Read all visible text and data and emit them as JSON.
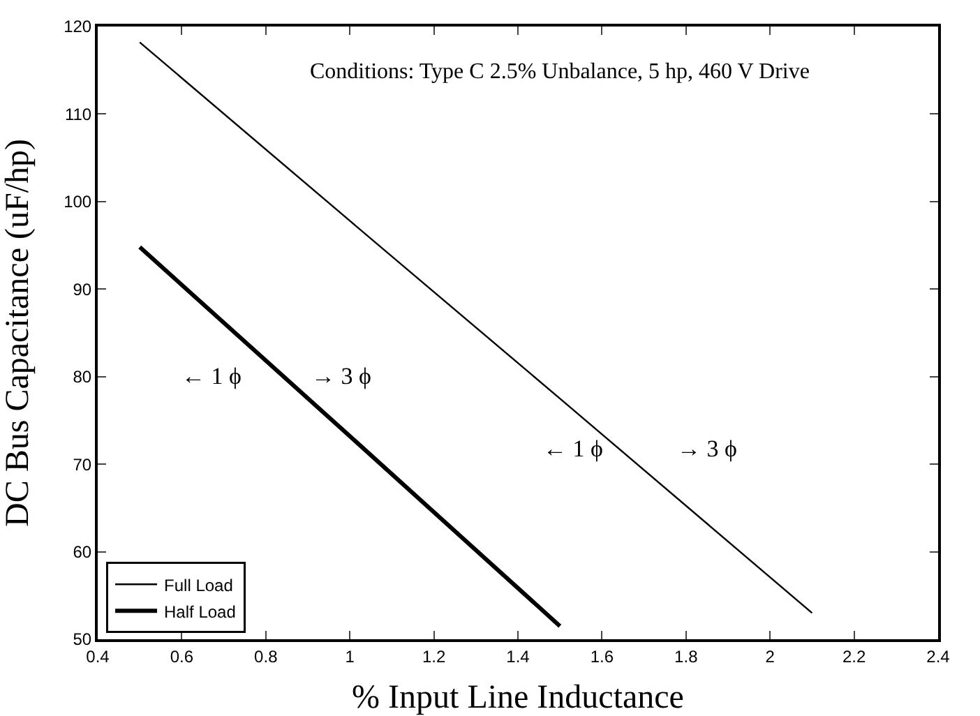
{
  "chart_data": {
    "type": "line",
    "xlabel": "% Input Line Inductance",
    "ylabel": "DC Bus Capacitance (uF/hp)",
    "xlim": [
      0.4,
      2.4
    ],
    "xticks": [
      0.4,
      0.6,
      0.8,
      1,
      1.2,
      1.4,
      1.6,
      1.8,
      2,
      2.2,
      2.4
    ],
    "ylim": [
      50,
      120
    ],
    "yticks": [
      50,
      60,
      70,
      80,
      90,
      100,
      110,
      120
    ],
    "grid": false,
    "legend": "bottom left",
    "marker": "none",
    "line_style": "solid",
    "series": [
      {
        "name": "Full Load",
        "color": "#000000",
        "x": [
          0.5,
          1.0,
          1.5,
          2.1
        ],
        "values": [
          118.2,
          97.8,
          77.5,
          53
        ]
      },
      {
        "name": "Half Load",
        "color": "#000000",
        "x": [
          0.5,
          1.0,
          1.5
        ],
        "values": [
          94.8,
          73.2,
          51.5
        ]
      }
    ],
    "annotations": [
      "Conditions: Type C 2.5% Unbalance, 5 hp, 460 V Drive",
      "← 1 ϕ",
      "→ 3 ϕ",
      "← 1 ϕ",
      "→ 3 ϕ"
    ]
  }
}
